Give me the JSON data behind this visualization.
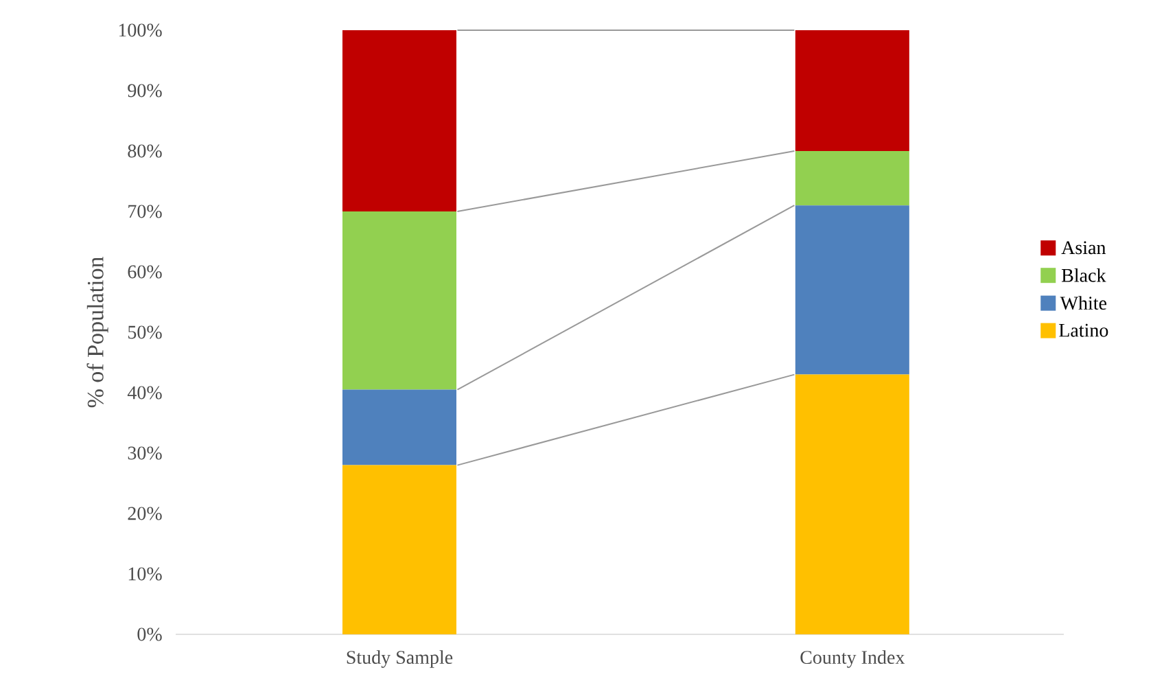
{
  "chart_data": {
    "type": "bar",
    "stacked": true,
    "ylabel": "% of Population",
    "categories": [
      "Study Sample",
      "County Index"
    ],
    "series": [
      {
        "name": "Latino",
        "color": "#ffc000",
        "values": [
          28,
          43
        ]
      },
      {
        "name": "White",
        "color": "#4f81bd",
        "values": [
          12.5,
          28
        ]
      },
      {
        "name": "Black",
        "color": "#92d050",
        "values": [
          29.5,
          9
        ]
      },
      {
        "name": "Asian",
        "color": "#c00000",
        "values": [
          30,
          20
        ]
      }
    ],
    "ylim": [
      0,
      100
    ],
    "yticks": [
      {
        "value": 0,
        "label": "0%"
      },
      {
        "value": 10,
        "label": "10%"
      },
      {
        "value": 20,
        "label": "20%"
      },
      {
        "value": 30,
        "label": "30%"
      },
      {
        "value": 40,
        "label": "40%"
      },
      {
        "value": 50,
        "label": "50%"
      },
      {
        "value": 60,
        "label": "60%"
      },
      {
        "value": 70,
        "label": "70%"
      },
      {
        "value": 80,
        "label": "80%"
      },
      {
        "value": 90,
        "label": "90%"
      },
      {
        "value": 100,
        "label": "100%"
      }
    ],
    "grid": false,
    "legend": "right"
  }
}
